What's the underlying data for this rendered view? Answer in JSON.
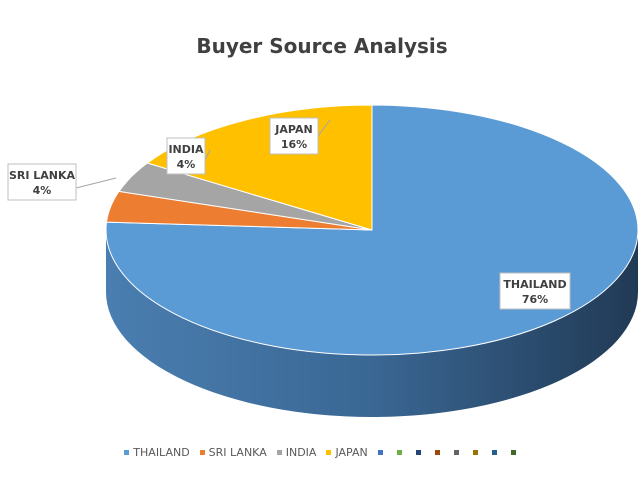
{
  "chart_data": {
    "type": "pie",
    "title": "Buyer Source Analysis",
    "categories": [
      "THAILAND",
      "SRI LANKA",
      "INDIA",
      "JAPAN"
    ],
    "values": [
      76,
      4,
      4,
      16
    ],
    "data_labels": [
      "76%",
      "4%",
      "4%",
      "16%"
    ],
    "colors": [
      "#5B9BD5",
      "#ED7D31",
      "#A5A5A5",
      "#FFC000"
    ],
    "legend_position": "bottom",
    "legend_extra_swatches": [
      "#4472C4",
      "#70AD47",
      "#264478",
      "#9E480E",
      "#636363",
      "#997300",
      "#255E91",
      "#43682B"
    ]
  }
}
